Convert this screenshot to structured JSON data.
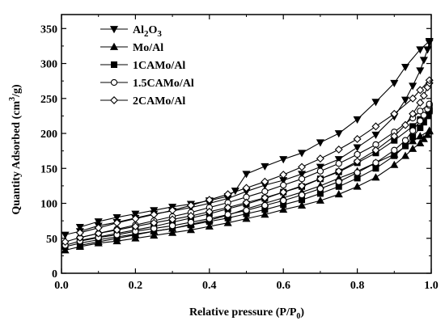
{
  "chart_data": {
    "type": "line",
    "xlabel": {
      "main": "Relative pressure (P/P",
      "sub": "0",
      "tail": ")"
    },
    "ylabel": {
      "main": "Quantity Adsorbed (cm",
      "sup": "3",
      "tail": "/g)"
    },
    "xlim": [
      0,
      1.0
    ],
    "ylim": [
      0,
      370
    ],
    "x_ticks": [
      0.0,
      0.2,
      0.4,
      0.6,
      0.8,
      1.0
    ],
    "x_tick_labels": [
      "0.0",
      "0.2",
      "0.4",
      "0.6",
      "0.8",
      "1.0"
    ],
    "y_ticks": [
      0,
      50,
      100,
      150,
      200,
      250,
      300,
      350
    ],
    "y_tick_labels": [
      "0",
      "50",
      "100",
      "150",
      "200",
      "250",
      "300",
      "350"
    ],
    "grid": false,
    "legend_position": "top-left",
    "series": [
      {
        "name": "Al2O3",
        "label_parts": [
          {
            "t": "Al"
          },
          {
            "t": "2",
            "sub": true
          },
          {
            "t": "O"
          },
          {
            "t": "3",
            "sub": true
          }
        ],
        "marker": "triangle-down",
        "color": "#000000",
        "adsorption": [
          [
            0.01,
            55
          ],
          [
            0.05,
            60
          ],
          [
            0.1,
            68
          ],
          [
            0.15,
            73
          ],
          [
            0.2,
            79
          ],
          [
            0.25,
            85
          ],
          [
            0.3,
            89
          ],
          [
            0.35,
            94
          ],
          [
            0.4,
            100
          ],
          [
            0.45,
            107
          ],
          [
            0.5,
            117
          ],
          [
            0.55,
            126
          ],
          [
            0.6,
            133
          ],
          [
            0.65,
            142
          ],
          [
            0.7,
            152
          ],
          [
            0.75,
            163
          ],
          [
            0.8,
            180
          ],
          [
            0.85,
            198
          ],
          [
            0.9,
            224
          ],
          [
            0.93,
            248
          ],
          [
            0.95,
            268
          ],
          [
            0.97,
            290
          ],
          [
            0.98,
            305
          ],
          [
            0.99,
            320
          ],
          [
            0.995,
            330
          ]
        ],
        "desorption": [
          [
            0.995,
            332
          ],
          [
            0.97,
            320
          ],
          [
            0.93,
            295
          ],
          [
            0.9,
            272
          ],
          [
            0.85,
            245
          ],
          [
            0.8,
            220
          ],
          [
            0.75,
            200
          ],
          [
            0.7,
            187
          ],
          [
            0.65,
            172
          ],
          [
            0.6,
            163
          ],
          [
            0.55,
            153
          ],
          [
            0.5,
            142
          ],
          [
            0.47,
            118
          ],
          [
            0.45,
            110
          ],
          [
            0.4,
            104
          ],
          [
            0.35,
            99
          ],
          [
            0.3,
            95
          ],
          [
            0.25,
            90
          ],
          [
            0.2,
            85
          ],
          [
            0.15,
            80
          ],
          [
            0.1,
            74
          ],
          [
            0.05,
            66
          ]
        ]
      },
      {
        "name": "Mo/Al",
        "label_parts": [
          {
            "t": "Mo/Al"
          }
        ],
        "marker": "triangle-up",
        "color": "#000000",
        "adsorption": [
          [
            0.01,
            33
          ],
          [
            0.05,
            38
          ],
          [
            0.1,
            43
          ],
          [
            0.15,
            46
          ],
          [
            0.2,
            50
          ],
          [
            0.25,
            54
          ],
          [
            0.3,
            58
          ],
          [
            0.35,
            62
          ],
          [
            0.4,
            67
          ],
          [
            0.45,
            72
          ],
          [
            0.5,
            78
          ],
          [
            0.55,
            84
          ],
          [
            0.6,
            91
          ],
          [
            0.65,
            97
          ],
          [
            0.7,
            104
          ],
          [
            0.75,
            113
          ],
          [
            0.8,
            124
          ],
          [
            0.85,
            137
          ],
          [
            0.9,
            155
          ],
          [
            0.93,
            168
          ],
          [
            0.95,
            178
          ],
          [
            0.97,
            186
          ],
          [
            0.98,
            192
          ],
          [
            0.99,
            198
          ],
          [
            0.995,
            203
          ]
        ],
        "desorption": [
          [
            0.995,
            204
          ],
          [
            0.97,
            196
          ],
          [
            0.95,
            189
          ],
          [
            0.9,
            170
          ],
          [
            0.85,
            158
          ],
          [
            0.8,
            146
          ],
          [
            0.75,
            136
          ],
          [
            0.7,
            125
          ],
          [
            0.65,
            116
          ],
          [
            0.6,
            108
          ],
          [
            0.55,
            100
          ],
          [
            0.5,
            92
          ],
          [
            0.45,
            83
          ],
          [
            0.4,
            76
          ],
          [
            0.35,
            70
          ],
          [
            0.3,
            64
          ],
          [
            0.25,
            60
          ],
          [
            0.2,
            55
          ],
          [
            0.15,
            50
          ],
          [
            0.1,
            45
          ],
          [
            0.05,
            40
          ]
        ]
      },
      {
        "name": "1CAMo/Al",
        "label_parts": [
          {
            "t": "1CAMo/Al"
          }
        ],
        "marker": "square",
        "color": "#000000",
        "adsorption": [
          [
            0.01,
            38
          ],
          [
            0.05,
            43
          ],
          [
            0.1,
            48
          ],
          [
            0.15,
            52
          ],
          [
            0.2,
            56
          ],
          [
            0.25,
            60
          ],
          [
            0.3,
            64
          ],
          [
            0.35,
            69
          ],
          [
            0.4,
            74
          ],
          [
            0.45,
            79
          ],
          [
            0.5,
            85
          ],
          [
            0.55,
            91
          ],
          [
            0.6,
            98
          ],
          [
            0.65,
            105
          ],
          [
            0.7,
            114
          ],
          [
            0.75,
            124
          ],
          [
            0.8,
            136
          ],
          [
            0.85,
            150
          ],
          [
            0.9,
            168
          ],
          [
            0.93,
            182
          ],
          [
            0.95,
            195
          ],
          [
            0.97,
            208
          ],
          [
            0.98,
            216
          ],
          [
            0.99,
            225
          ],
          [
            0.995,
            232
          ]
        ],
        "desorption": [
          [
            0.995,
            234
          ],
          [
            0.97,
            220
          ],
          [
            0.95,
            210
          ],
          [
            0.9,
            190
          ],
          [
            0.85,
            172
          ],
          [
            0.8,
            158
          ],
          [
            0.75,
            145
          ],
          [
            0.7,
            135
          ],
          [
            0.65,
            124
          ],
          [
            0.6,
            116
          ],
          [
            0.55,
            107
          ],
          [
            0.5,
            99
          ],
          [
            0.45,
            92
          ],
          [
            0.4,
            85
          ],
          [
            0.35,
            79
          ],
          [
            0.3,
            73
          ],
          [
            0.25,
            67
          ],
          [
            0.2,
            62
          ],
          [
            0.15,
            57
          ],
          [
            0.1,
            52
          ],
          [
            0.05,
            47
          ]
        ]
      },
      {
        "name": "1.5CAMo/Al",
        "label_parts": [
          {
            "t": "1.5CAMo/Al"
          }
        ],
        "marker": "circle-open",
        "color": "#000000",
        "adsorption": [
          [
            0.01,
            40
          ],
          [
            0.05,
            46
          ],
          [
            0.1,
            51
          ],
          [
            0.15,
            55
          ],
          [
            0.2,
            60
          ],
          [
            0.25,
            64
          ],
          [
            0.3,
            68
          ],
          [
            0.35,
            73
          ],
          [
            0.4,
            78
          ],
          [
            0.45,
            84
          ],
          [
            0.5,
            90
          ],
          [
            0.55,
            97
          ],
          [
            0.6,
            104
          ],
          [
            0.65,
            112
          ],
          [
            0.7,
            121
          ],
          [
            0.75,
            131
          ],
          [
            0.8,
            144
          ],
          [
            0.85,
            158
          ],
          [
            0.9,
            176
          ],
          [
            0.93,
            190
          ],
          [
            0.95,
            204
          ],
          [
            0.97,
            218
          ],
          [
            0.98,
            226
          ],
          [
            0.99,
            235
          ],
          [
            0.995,
            240
          ]
        ],
        "desorption": [
          [
            0.995,
            242
          ],
          [
            0.97,
            232
          ],
          [
            0.95,
            222
          ],
          [
            0.9,
            202
          ],
          [
            0.85,
            184
          ],
          [
            0.8,
            170
          ],
          [
            0.75,
            157
          ],
          [
            0.7,
            146
          ],
          [
            0.65,
            135
          ],
          [
            0.6,
            126
          ],
          [
            0.55,
            117
          ],
          [
            0.5,
            109
          ],
          [
            0.45,
            101
          ],
          [
            0.4,
            94
          ],
          [
            0.35,
            87
          ],
          [
            0.3,
            81
          ],
          [
            0.25,
            75
          ],
          [
            0.2,
            69
          ],
          [
            0.15,
            63
          ],
          [
            0.1,
            57
          ],
          [
            0.05,
            51
          ]
        ]
      },
      {
        "name": "2CAMo/Al",
        "label_parts": [
          {
            "t": "2CAMo/Al"
          }
        ],
        "marker": "diamond-open",
        "color": "#000000",
        "adsorption": [
          [
            0.01,
            45
          ],
          [
            0.05,
            51
          ],
          [
            0.1,
            57
          ],
          [
            0.15,
            62
          ],
          [
            0.2,
            67
          ],
          [
            0.25,
            72
          ],
          [
            0.3,
            77
          ],
          [
            0.35,
            82
          ],
          [
            0.4,
            88
          ],
          [
            0.45,
            94
          ],
          [
            0.5,
            101
          ],
          [
            0.55,
            108
          ],
          [
            0.6,
            116
          ],
          [
            0.65,
            125
          ],
          [
            0.7,
            135
          ],
          [
            0.75,
            146
          ],
          [
            0.8,
            160
          ],
          [
            0.85,
            176
          ],
          [
            0.9,
            196
          ],
          [
            0.93,
            212
          ],
          [
            0.95,
            228
          ],
          [
            0.97,
            244
          ],
          [
            0.98,
            254
          ],
          [
            0.99,
            266
          ],
          [
            0.995,
            272
          ]
        ],
        "desorption": [
          [
            0.995,
            276
          ],
          [
            0.97,
            262
          ],
          [
            0.95,
            250
          ],
          [
            0.9,
            228
          ],
          [
            0.85,
            210
          ],
          [
            0.8,
            192
          ],
          [
            0.75,
            177
          ],
          [
            0.7,
            164
          ],
          [
            0.65,
            152
          ],
          [
            0.6,
            141
          ],
          [
            0.55,
            131
          ],
          [
            0.5,
            122
          ],
          [
            0.45,
            113
          ],
          [
            0.4,
            105
          ],
          [
            0.35,
            97
          ],
          [
            0.3,
            90
          ],
          [
            0.25,
            84
          ],
          [
            0.2,
            78
          ],
          [
            0.15,
            72
          ],
          [
            0.1,
            65
          ],
          [
            0.05,
            58
          ]
        ]
      }
    ]
  }
}
